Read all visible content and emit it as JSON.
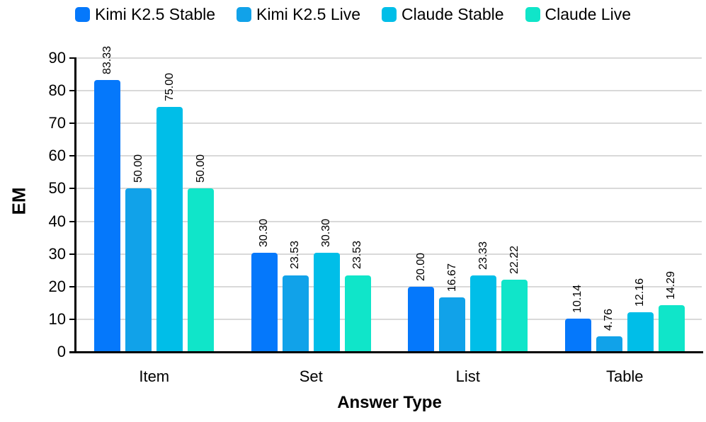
{
  "chart_data": {
    "type": "bar",
    "title": "",
    "categories": [
      "Item",
      "Set",
      "List",
      "Table"
    ],
    "series": [
      {
        "name": "Kimi K2.5 Stable",
        "color": "#0578FB",
        "values": [
          83.33,
          30.3,
          20.0,
          10.14
        ]
      },
      {
        "name": "Kimi K2.5 Live",
        "color": "#11A2E9",
        "values": [
          50.0,
          23.53,
          16.67,
          4.76
        ]
      },
      {
        "name": "Claude Stable",
        "color": "#00BEE8",
        "values": [
          75.0,
          30.3,
          23.33,
          12.16
        ]
      },
      {
        "name": "Claude Live",
        "color": "#10E5C9",
        "values": [
          50.0,
          23.53,
          22.22,
          14.29
        ]
      }
    ],
    "xlabel": "Answer Type",
    "ylabel": "EM",
    "ylim": [
      0,
      90
    ],
    "ytick_step": 10,
    "yticks": [
      0,
      10,
      20,
      30,
      40,
      50,
      60,
      70,
      80,
      90
    ],
    "grid": true,
    "legend_position": "top",
    "value_labels": "rotated-90-two-decimals",
    "colors": {
      "gridline": "#d9d9d9",
      "axis": "#000000",
      "text": "#000000",
      "background": "#ffffff"
    }
  }
}
